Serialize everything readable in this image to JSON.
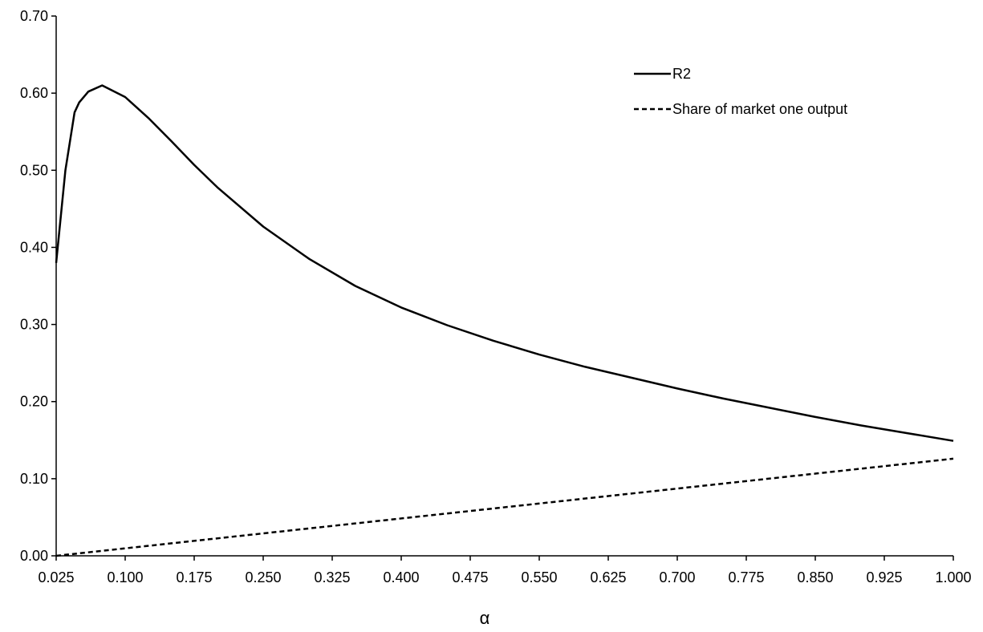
{
  "chart_data": {
    "type": "line",
    "title": "",
    "xlabel": "α",
    "ylabel": "",
    "xlim": [
      0.025,
      1.0
    ],
    "ylim": [
      0.0,
      0.7
    ],
    "x_ticks": [
      "0.025",
      "0.100",
      "0.175",
      "0.250",
      "0.325",
      "0.400",
      "0.475",
      "0.550",
      "0.625",
      "0.700",
      "0.775",
      "0.850",
      "0.925",
      "1.000"
    ],
    "y_ticks": [
      "0.00",
      "0.10",
      "0.20",
      "0.30",
      "0.40",
      "0.50",
      "0.60",
      "0.70"
    ],
    "grid": false,
    "legend_position": "top-right",
    "series": [
      {
        "name": "R2",
        "line_style": "solid",
        "color": "#000000",
        "x": [
          0.025,
          0.035,
          0.045,
          0.05,
          0.06,
          0.075,
          0.1,
          0.125,
          0.15,
          0.175,
          0.2,
          0.25,
          0.3,
          0.35,
          0.4,
          0.45,
          0.5,
          0.55,
          0.6,
          0.65,
          0.7,
          0.75,
          0.8,
          0.85,
          0.9,
          0.95,
          1.0
        ],
        "y": [
          0.38,
          0.5,
          0.575,
          0.588,
          0.602,
          0.61,
          0.595,
          0.568,
          0.538,
          0.507,
          0.478,
          0.427,
          0.385,
          0.35,
          0.322,
          0.299,
          0.279,
          0.261,
          0.245,
          0.231,
          0.217,
          0.204,
          0.192,
          0.18,
          0.169,
          0.159,
          0.149
        ]
      },
      {
        "name": "Share of market one output",
        "line_style": "dashed",
        "color": "#000000",
        "x": [
          0.025,
          1.0
        ],
        "y": [
          0.0,
          0.126
        ]
      }
    ]
  }
}
